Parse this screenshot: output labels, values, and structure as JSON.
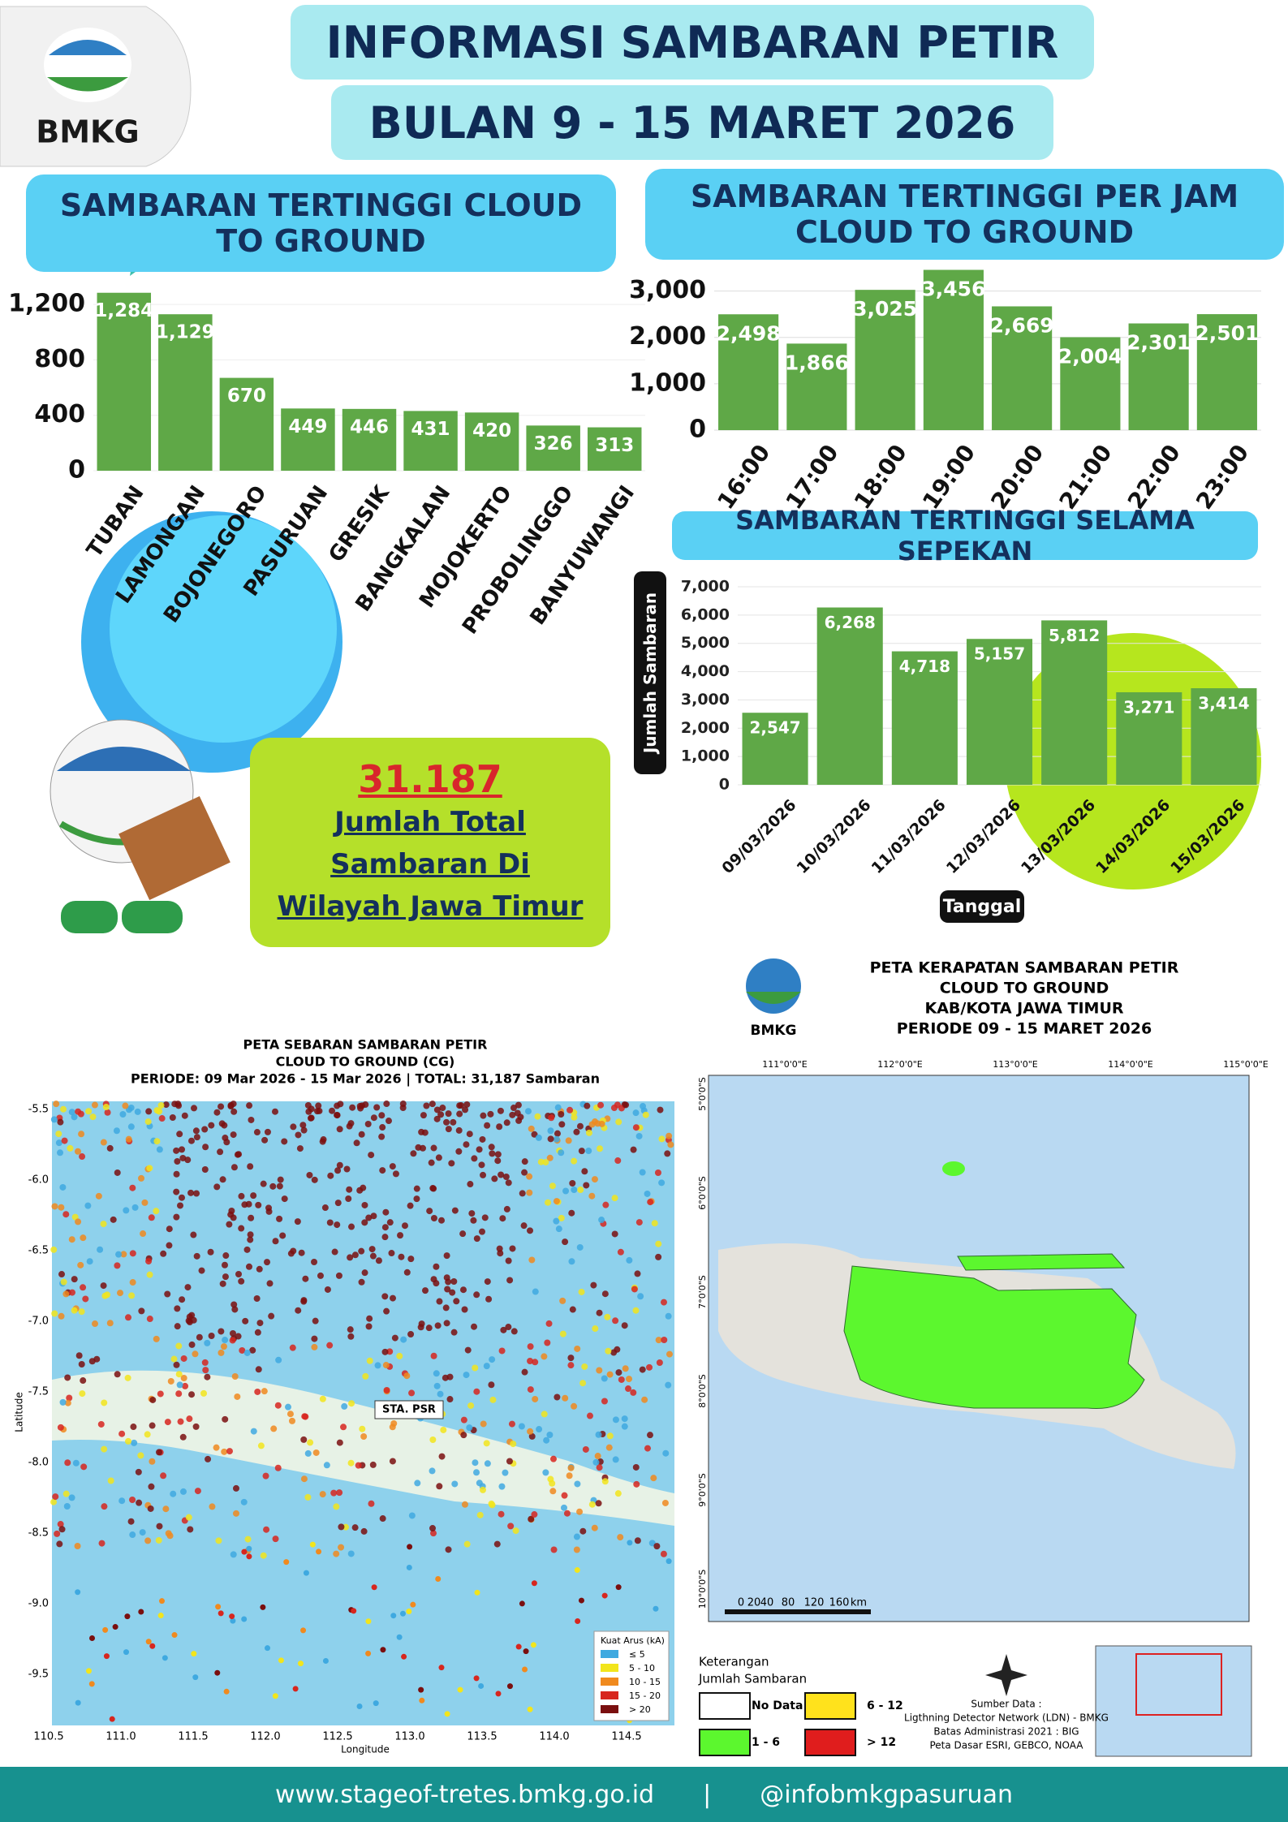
{
  "header": {
    "logo": "BMKG",
    "title": [
      "INFORMASI SAMBARAN PETIR",
      "BULAN 9 - 15 MARET 2026"
    ]
  },
  "chart_data": [
    {
      "type": "bar",
      "title": "SAMBARAN TERTINGGI  CLOUD TO GROUND",
      "categories": [
        "TUBAN",
        "LAMONGAN",
        "BOJONEGORO",
        "PASURUAN",
        "GRESIK",
        "BANGKALAN",
        "MOJOKERTO",
        "PROBOLINGGO",
        "BANYUWANGI"
      ],
      "values": [
        1284,
        1129,
        670,
        449,
        446,
        431,
        420,
        326,
        313
      ],
      "value_labels": [
        "1,284",
        "1,129",
        "670",
        "449",
        "446",
        "431",
        "420",
        "326",
        "313"
      ],
      "color": "#5fa847",
      "ylim": [
        0,
        1300
      ],
      "yticks": [
        0,
        400,
        800,
        {
          "value": 1200,
          "label": "1,200"
        }
      ],
      "grid": true
    },
    {
      "type": "bar",
      "title": "SAMBARAN TERTINGGI PER JAM CLOUD TO GROUND",
      "categories": [
        "16:00",
        "17:00",
        "18:00",
        "19:00",
        "20:00",
        "21:00",
        "22:00",
        "23:00"
      ],
      "values": [
        2498,
        1866,
        3025,
        3456,
        2669,
        2004,
        2301,
        2501
      ],
      "value_labels": [
        "2,498",
        "1,866",
        "3,025",
        "3,456",
        "2,669",
        "2,004",
        "2,301",
        "2,501"
      ],
      "color": "#5fa847",
      "ylim": [
        0,
        3500
      ],
      "yticks": [
        0,
        {
          "value": 1000,
          "label": "1,000"
        },
        {
          "value": 2000,
          "label": "2,000"
        },
        {
          "value": 3000,
          "label": "3,000"
        }
      ],
      "grid": true
    },
    {
      "type": "bar",
      "title": "SAMBARAN TERTINGGI SELAMA SEPEKAN",
      "x_label": "Tanggal",
      "y_label": "Jumlah Sambaran",
      "categories": [
        "09/03/2026",
        "10/03/2026",
        "11/03/2026",
        "12/03/2026",
        "13/03/2026",
        "14/03/2026",
        "15/03/2026"
      ],
      "values": [
        2547,
        6268,
        4718,
        5157,
        5812,
        3271,
        3414
      ],
      "value_labels": [
        "2,547",
        "6,268",
        "4,718",
        "5,157",
        "5,812",
        "3,271",
        "3,414"
      ],
      "color": "#5fa847",
      "ylim": [
        0,
        7000
      ],
      "yticks": [
        0,
        {
          "value": 1000,
          "label": "1,000"
        },
        {
          "value": 2000,
          "label": "2,000"
        },
        {
          "value": 3000,
          "label": "3,000"
        },
        {
          "value": 4000,
          "label": "4,000"
        },
        {
          "value": 5000,
          "label": "5,000"
        },
        {
          "value": 6000,
          "label": "6,000"
        },
        {
          "value": 7000,
          "label": "7,000"
        }
      ],
      "grid": true
    }
  ],
  "total": {
    "number": "31.187",
    "lines": [
      "Jumlah Total",
      "Sambaran Di",
      "Wilayah Jawa Timur"
    ]
  },
  "map_left": {
    "title": [
      "PETA SEBARAN SAMBARAN PETIR",
      "CLOUD TO GROUND (CG)",
      "PERIODE: 09 Mar 2026 - 15 Mar 2026 | TOTAL: 31,187 Sambaran"
    ],
    "y_label": "Latitude",
    "x_label": "Longitude",
    "lat_ticks": [
      "-5.5",
      "-6.0",
      "-6.5",
      "-7.0",
      "-7.5",
      "-8.0",
      "-8.5",
      "-9.0",
      "-9.5"
    ],
    "lon_ticks": [
      "110.5",
      "111.0",
      "111.5",
      "112.0",
      "112.5",
      "113.0",
      "113.5",
      "114.0",
      "114.5"
    ],
    "station": "STA. PSR",
    "legend_title": "Kuat Arus (kA)",
    "legend": [
      "≤ 5",
      "5 - 10",
      "10 - 15",
      "15 - 20",
      "> 20"
    ]
  },
  "map_right": {
    "logo": "BMKG",
    "title": [
      "PETA KERAPATAN SAMBARAN PETIR",
      "CLOUD TO GROUND",
      "KAB/KOTA JAWA TIMUR",
      "PERIODE 09 - 15 MARET 2026"
    ],
    "lon_ticks": [
      "111°0'0\"E",
      "112°0'0\"E",
      "113°0'0\"E",
      "114°0'0\"E",
      "115°0'0\"E"
    ],
    "lat_ticks": [
      "5°0'0\"S",
      "6°0'0\"S",
      "7°0'0\"S",
      "8°0'0\"S",
      "9°0'0\"S",
      "10°0'0\"S"
    ],
    "scale": [
      "0",
      "20",
      "40",
      "80",
      "120",
      "160",
      "km"
    ],
    "legend_title": [
      "Keterangan",
      "Jumlah Sambaran"
    ],
    "legend": [
      "No Data",
      "1 - 6",
      "6 - 12",
      "> 12"
    ],
    "source": [
      "Sumber Data :",
      "Ligthning Detector Network (LDN) - BMKG",
      "Batas Administrasi 2021 : BIG",
      "Peta Dasar ESRI, GEBCO, NOAA"
    ]
  },
  "footer": {
    "website": "www.stageof-tretes.bmkg.go.id",
    "social": "@infobmkgpasuruan"
  }
}
